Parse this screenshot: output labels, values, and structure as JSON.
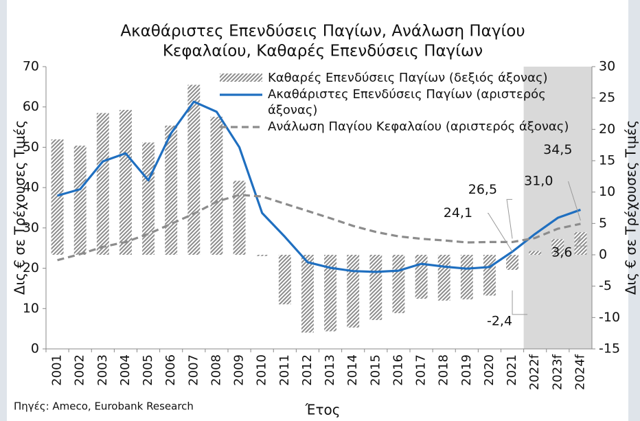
{
  "chart_data": {
    "type": "bar_line",
    "title": [
      "Ακαθάριστες Επενδύσεις Παγίων, Ανάλωση Παγίου",
      "Κεφαλαίου, Καθαρές Επενδύσεις Παγίων"
    ],
    "x_label": "Έτος",
    "y_label": "Δις € σε Τρέχουσες Τιμές",
    "y2_label": "Δις € σε Τρέχουσες Τιμές",
    "source": "Πηγές: Ameco, Eurobank Research",
    "categories": [
      "2001",
      "2002",
      "2003",
      "2004",
      "2005",
      "2006",
      "2007",
      "2008",
      "2009",
      "2010",
      "2011",
      "2012",
      "2013",
      "2014",
      "2015",
      "2016",
      "2017",
      "2018",
      "2019",
      "2020",
      "2021",
      "2022f",
      "2023f",
      "2024f"
    ],
    "ylim": [
      0,
      70
    ],
    "yticks": [
      0,
      10,
      20,
      30,
      40,
      50,
      60,
      70
    ],
    "y2lim": [
      -15,
      30
    ],
    "y2ticks": [
      -15,
      -10,
      -5,
      0,
      5,
      10,
      15,
      20,
      25,
      30
    ],
    "series": [
      {
        "name": "Καθαρές Επενδύσεις Παγίων (δεξιός άξονας)",
        "type": "bar",
        "axis": "y2",
        "color": "#8c8c8c",
        "values": [
          18.4,
          17.4,
          22.6,
          23.1,
          17.9,
          20.6,
          27.1,
          22.0,
          11.8,
          -0.2,
          -7.9,
          -12.4,
          -12.2,
          -11.6,
          -10.4,
          -9.3,
          -7.0,
          -7.3,
          -7.1,
          -6.5,
          -2.4,
          0.6,
          2.5,
          3.6
        ],
        "value_labels": [
          null,
          null,
          null,
          null,
          null,
          null,
          null,
          null,
          null,
          null,
          null,
          null,
          null,
          null,
          null,
          null,
          null,
          null,
          null,
          null,
          "-2,4",
          null,
          null,
          "3,6"
        ]
      },
      {
        "name": "Ακαθάριστες Επενδύσεις Παγίων (αριστερός άξονας)",
        "type": "line",
        "color": "#1f6fc0",
        "values": [
          38.0,
          39.6,
          46.5,
          48.5,
          41.8,
          53.5,
          61.3,
          58.8,
          50.0,
          33.7,
          27.8,
          21.5,
          20.1,
          19.3,
          19.1,
          19.4,
          21.1,
          20.4,
          19.9,
          20.3,
          24.1,
          28.5,
          32.5,
          34.5
        ],
        "value_labels": [
          null,
          null,
          null,
          null,
          null,
          null,
          null,
          null,
          null,
          null,
          null,
          null,
          null,
          null,
          null,
          null,
          null,
          null,
          null,
          null,
          "24,1",
          null,
          null,
          "34,5"
        ]
      },
      {
        "name": "Ανάλωση Παγίου Κεφαλαίου (αριστερός άξονας)",
        "type": "dashed_line",
        "color": "#8c8c8c",
        "values": [
          22.0,
          23.5,
          25.3,
          26.5,
          28.5,
          31.0,
          33.5,
          36.5,
          38.2,
          37.8,
          36.0,
          34.2,
          32.4,
          30.5,
          29.0,
          27.9,
          27.3,
          26.9,
          26.4,
          26.5,
          26.5,
          27.5,
          29.8,
          31.0
        ],
        "value_labels": [
          null,
          null,
          null,
          null,
          null,
          null,
          null,
          null,
          null,
          null,
          null,
          null,
          null,
          null,
          null,
          null,
          null,
          null,
          null,
          null,
          "26,5",
          null,
          null,
          "31,0"
        ]
      }
    ],
    "forecast_shading": true
  }
}
